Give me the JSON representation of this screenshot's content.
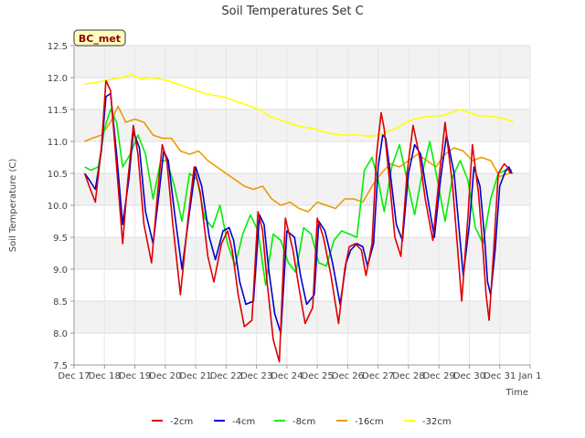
{
  "chart_data": {
    "type": "line",
    "title": "Soil Temperatures Set C",
    "xlabel": "Time",
    "ylabel": "Soil Temperature (C)",
    "tag": "BC_met",
    "ylim": [
      7.5,
      12.5
    ],
    "xlim": [
      "Dec 17",
      "Jan 1"
    ],
    "yticks": [
      "7.5",
      "8.0",
      "8.5",
      "9.0",
      "9.5",
      "10.0",
      "10.5",
      "11.0",
      "11.5",
      "12.0",
      "12.5"
    ],
    "xticks": [
      "Dec 17",
      "Dec 18",
      "Dec 19",
      "Dec 20",
      "Dec 21",
      "Dec 22",
      "Dec 23",
      "Dec 24",
      "Dec 25",
      "Dec 26",
      "Dec 27",
      "Dec 28",
      "Dec 29",
      "Dec 30",
      "Dec 31",
      "Jan 1"
    ],
    "grid": true,
    "legend_position": "bottom",
    "series": [
      {
        "name": "-2cm",
        "color": "#dd0000",
        "x": [
          0.35,
          0.5,
          0.7,
          0.9,
          1.05,
          1.2,
          1.4,
          1.6,
          1.75,
          1.95,
          2.1,
          2.3,
          2.55,
          2.75,
          2.9,
          3.05,
          3.25,
          3.5,
          3.75,
          3.95,
          4.15,
          4.4,
          4.6,
          4.85,
          5.05,
          5.2,
          5.4,
          5.6,
          5.85,
          6.05,
          6.2,
          6.35,
          6.55,
          6.75,
          6.95,
          7.2,
          7.4,
          7.6,
          7.85,
          8.0,
          8.2,
          8.45,
          8.7,
          8.9,
          9.05,
          9.25,
          9.45,
          9.6,
          9.8,
          9.95,
          10.1,
          10.2,
          10.35,
          10.55,
          10.75,
          10.95,
          11.15,
          11.35,
          11.55,
          11.8,
          12.0,
          12.2,
          12.45,
          12.6,
          12.75,
          12.95,
          13.1,
          13.3,
          13.45,
          13.55,
          13.65,
          13.8,
          13.95,
          14.15,
          14.25,
          14.35
        ],
        "values": [
          10.5,
          10.3,
          10.05,
          10.9,
          11.95,
          11.8,
          10.6,
          9.4,
          10.3,
          11.25,
          10.8,
          9.7,
          9.1,
          10.2,
          10.95,
          10.7,
          9.7,
          8.6,
          9.8,
          10.6,
          10.2,
          9.2,
          8.8,
          9.4,
          9.6,
          9.3,
          8.6,
          8.1,
          8.2,
          9.9,
          9.6,
          8.8,
          7.9,
          7.55,
          9.8,
          9.3,
          8.7,
          8.15,
          8.4,
          9.8,
          9.5,
          8.9,
          8.15,
          9.0,
          9.35,
          9.4,
          9.3,
          8.9,
          9.4,
          10.8,
          11.45,
          11.2,
          10.5,
          9.5,
          9.2,
          10.5,
          11.25,
          10.8,
          10.1,
          9.45,
          10.4,
          11.3,
          10.3,
          9.4,
          8.5,
          9.8,
          10.95,
          10.2,
          9.3,
          8.6,
          8.2,
          9.3,
          10.5,
          10.65,
          10.6,
          10.5
        ]
      },
      {
        "name": "-4cm",
        "color": "#0000cc",
        "x": [
          0.35,
          0.5,
          0.7,
          0.9,
          1.05,
          1.2,
          1.4,
          1.6,
          1.8,
          1.95,
          2.15,
          2.35,
          2.6,
          2.8,
          2.95,
          3.1,
          3.3,
          3.55,
          3.8,
          4.0,
          4.2,
          4.45,
          4.65,
          4.9,
          5.1,
          5.25,
          5.45,
          5.65,
          5.9,
          6.1,
          6.25,
          6.4,
          6.6,
          6.8,
          7.0,
          7.25,
          7.45,
          7.65,
          7.9,
          8.05,
          8.25,
          8.5,
          8.75,
          8.95,
          9.1,
          9.3,
          9.5,
          9.65,
          9.85,
          10.0,
          10.15,
          10.25,
          10.4,
          10.6,
          10.8,
          11.0,
          11.2,
          11.4,
          11.6,
          11.85,
          12.05,
          12.25,
          12.5,
          12.65,
          12.8,
          13.0,
          13.15,
          13.35,
          13.5,
          13.6,
          13.7,
          13.85,
          14.0,
          14.2,
          14.3,
          14.4
        ],
        "values": [
          10.5,
          10.4,
          10.25,
          10.85,
          11.7,
          11.75,
          10.8,
          9.7,
          10.4,
          11.15,
          10.9,
          9.9,
          9.4,
          10.2,
          10.85,
          10.7,
          9.9,
          9.0,
          9.9,
          10.6,
          10.3,
          9.5,
          9.15,
          9.6,
          9.65,
          9.45,
          8.8,
          8.45,
          8.5,
          9.85,
          9.7,
          9.0,
          8.3,
          8.0,
          9.6,
          9.5,
          8.9,
          8.45,
          8.6,
          9.75,
          9.6,
          9.1,
          8.45,
          9.1,
          9.3,
          9.4,
          9.35,
          9.05,
          9.4,
          10.6,
          11.1,
          11.05,
          10.5,
          9.7,
          9.45,
          10.5,
          10.95,
          10.8,
          10.2,
          9.5,
          10.4,
          11.1,
          10.5,
          9.7,
          8.9,
          9.7,
          10.6,
          10.3,
          9.5,
          8.8,
          8.6,
          9.3,
          10.3,
          10.55,
          10.6,
          10.5
        ]
      },
      {
        "name": "-8cm",
        "color": "#00ee00",
        "x": [
          0.35,
          0.55,
          0.8,
          1.0,
          1.2,
          1.4,
          1.6,
          1.85,
          2.1,
          2.35,
          2.6,
          2.85,
          3.05,
          3.3,
          3.55,
          3.8,
          4.05,
          4.3,
          4.55,
          4.8,
          5.05,
          5.3,
          5.55,
          5.8,
          6.05,
          6.3,
          6.55,
          6.8,
          7.05,
          7.3,
          7.55,
          7.8,
          8.05,
          8.3,
          8.55,
          8.8,
          9.05,
          9.3,
          9.55,
          9.8,
          10.0,
          10.2,
          10.45,
          10.7,
          10.95,
          11.2,
          11.45,
          11.7,
          11.95,
          12.2,
          12.45,
          12.7,
          12.95,
          13.2,
          13.45,
          13.7,
          13.95,
          14.2,
          14.4
        ],
        "values": [
          10.6,
          10.55,
          10.6,
          11.2,
          11.5,
          11.3,
          10.6,
          10.8,
          11.1,
          10.8,
          10.1,
          10.7,
          10.7,
          10.3,
          9.75,
          10.5,
          10.4,
          9.8,
          9.65,
          10.0,
          9.4,
          9.05,
          9.55,
          9.85,
          9.6,
          8.75,
          9.55,
          9.45,
          9.1,
          8.95,
          9.65,
          9.55,
          9.1,
          9.05,
          9.45,
          9.6,
          9.55,
          9.5,
          10.55,
          10.75,
          10.4,
          9.9,
          10.6,
          10.95,
          10.4,
          9.85,
          10.5,
          11.0,
          10.4,
          9.75,
          10.45,
          10.7,
          10.4,
          9.65,
          9.4,
          10.1,
          10.5,
          10.55,
          10.55
        ]
      },
      {
        "name": "-16cm",
        "color": "#ee9900",
        "x": [
          0.35,
          0.6,
          0.9,
          1.2,
          1.45,
          1.7,
          2.0,
          2.3,
          2.6,
          2.9,
          3.2,
          3.5,
          3.8,
          4.1,
          4.4,
          4.7,
          5.0,
          5.3,
          5.6,
          5.9,
          6.2,
          6.5,
          6.8,
          7.1,
          7.4,
          7.7,
          8.0,
          8.3,
          8.6,
          8.9,
          9.2,
          9.5,
          9.8,
          10.1,
          10.4,
          10.7,
          11.0,
          11.3,
          11.6,
          11.9,
          12.2,
          12.5,
          12.8,
          13.1,
          13.4,
          13.7,
          14.0,
          14.3,
          14.45
        ],
        "values": [
          11.0,
          11.05,
          11.1,
          11.3,
          11.55,
          11.3,
          11.35,
          11.3,
          11.1,
          11.05,
          11.05,
          10.85,
          10.8,
          10.85,
          10.7,
          10.6,
          10.5,
          10.4,
          10.3,
          10.25,
          10.3,
          10.1,
          10.0,
          10.05,
          9.95,
          9.9,
          10.05,
          10.0,
          9.95,
          10.1,
          10.1,
          10.05,
          10.3,
          10.5,
          10.65,
          10.6,
          10.7,
          10.8,
          10.7,
          10.6,
          10.8,
          10.9,
          10.85,
          10.7,
          10.75,
          10.7,
          10.45,
          10.5,
          10.5
        ]
      },
      {
        "name": "-32cm",
        "color": "#ffff00",
        "x": [
          0.35,
          0.7,
          1.0,
          1.3,
          1.6,
          1.9,
          2.2,
          2.5,
          2.8,
          3.1,
          3.4,
          3.7,
          4.0,
          4.3,
          4.6,
          4.9,
          5.2,
          5.5,
          5.8,
          6.1,
          6.4,
          6.7,
          7.0,
          7.3,
          7.6,
          7.9,
          8.2,
          8.5,
          8.8,
          9.1,
          9.4,
          9.7,
          10.0,
          10.3,
          10.6,
          10.9,
          11.2,
          11.5,
          11.8,
          12.1,
          12.4,
          12.7,
          13.0,
          13.3,
          13.6,
          13.9,
          14.2,
          14.45
        ],
        "values": [
          11.9,
          11.92,
          11.95,
          11.98,
          12.0,
          12.05,
          11.98,
          12.0,
          11.98,
          11.95,
          11.9,
          11.85,
          11.8,
          11.75,
          11.72,
          11.7,
          11.65,
          11.6,
          11.55,
          11.5,
          11.4,
          11.35,
          11.3,
          11.25,
          11.22,
          11.2,
          11.15,
          11.12,
          11.1,
          11.1,
          11.1,
          11.08,
          11.1,
          11.15,
          11.2,
          11.3,
          11.35,
          11.38,
          11.4,
          11.4,
          11.45,
          11.5,
          11.45,
          11.4,
          11.4,
          11.38,
          11.35,
          11.3
        ]
      }
    ]
  }
}
